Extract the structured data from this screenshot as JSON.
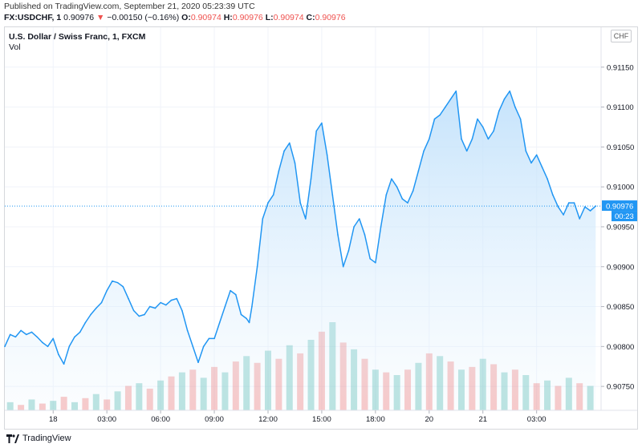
{
  "header": {
    "published": "Published on TradingView.com, September 21, 2020 05:23:39 UTC",
    "symbol": "FX:USDCHF, 1",
    "last": "0.90976",
    "arrow": "▼",
    "change": "−0.00150 (−0.16%)",
    "o_label": "O:",
    "o_value": "0.90974",
    "h_label": "H:",
    "h_value": "0.90976",
    "l_label": "L:",
    "l_value": "0.90974",
    "c_label": "C:",
    "c_value": "0.90976"
  },
  "chart_title": "U.S. Dollar / Swiss Franc, 1, FXCM",
  "vol_label": "Vol",
  "currency_button": "CHF",
  "footer": {
    "brand": "TradingView"
  },
  "colors": {
    "line": "#2196f3",
    "area_top": "#bbdefb",
    "up_volume": "#26a69a",
    "down_volume": "#ef5350",
    "price_tag": "#2196f3",
    "negative": "#ef5350"
  },
  "chart_data": {
    "type": "area",
    "title": "U.S. Dollar / Swiss Franc, 1, FXCM",
    "xlabel": "",
    "ylabel": "CHF",
    "xlim": [
      0,
      44.4
    ],
    "ylim": [
      0.9072,
      0.912
    ],
    "y_ticks": [
      0.9075,
      0.908,
      0.9085,
      0.909,
      0.9095,
      0.91,
      0.9105,
      0.911,
      0.9115
    ],
    "y_tick_labels": [
      "0.90750",
      "0.90800",
      "0.90850",
      "0.90900",
      "0.90950",
      "0.91000",
      "0.91050",
      "0.91100",
      "0.91150"
    ],
    "x_ticks": [
      3.6,
      7.6,
      11.6,
      15.6,
      19.6,
      23.6,
      27.6,
      31.6,
      35.6,
      39.6
    ],
    "x_tick_labels": [
      "18",
      "03:00",
      "06:00",
      "09:00",
      "12:00",
      "15:00",
      "18:00",
      "20",
      "21",
      "03:00"
    ],
    "last_price": 0.90976,
    "last_price_label": "0.90976",
    "countdown_label": "00:23",
    "series": [
      {
        "name": "USDCHF",
        "x": [
          0,
          0.4,
          0.8,
          1.2,
          1.6,
          2.0,
          2.4,
          2.8,
          3.2,
          3.6,
          4.0,
          4.4,
          4.8,
          5.2,
          5.6,
          6.0,
          6.4,
          6.8,
          7.2,
          7.6,
          8.0,
          8.4,
          8.8,
          9.2,
          9.6,
          10.0,
          10.4,
          10.8,
          11.2,
          11.6,
          12.0,
          12.4,
          12.8,
          13.2,
          13.6,
          14.0,
          14.4,
          14.8,
          15.2,
          15.6,
          16.0,
          16.4,
          16.8,
          17.2,
          17.6,
          18.0,
          18.2,
          18.4,
          18.8,
          19.2,
          19.6,
          20.0,
          20.4,
          20.8,
          21.2,
          21.6,
          22.0,
          22.4,
          22.8,
          23.2,
          23.6,
          24.0,
          24.4,
          24.8,
          25.2,
          25.6,
          26.0,
          26.4,
          26.8,
          27.2,
          27.6,
          28.0,
          28.4,
          28.8,
          29.2,
          29.6,
          30.0,
          30.4,
          30.8,
          31.2,
          31.6,
          32.0,
          32.4,
          32.8,
          33.2,
          33.6,
          34.0,
          34.4,
          34.8,
          35.2,
          35.6,
          36.0,
          36.4,
          36.8,
          37.2,
          37.6,
          38.0,
          38.4,
          38.8,
          39.2,
          39.6,
          40.0,
          40.4,
          40.8,
          41.2,
          41.6,
          42.0,
          42.4,
          42.8,
          43.2,
          43.6,
          44.0
        ],
        "values": [
          0.908,
          0.90815,
          0.90812,
          0.9082,
          0.90815,
          0.90818,
          0.90812,
          0.90805,
          0.908,
          0.9081,
          0.9079,
          0.90778,
          0.908,
          0.90812,
          0.90818,
          0.9083,
          0.9084,
          0.90848,
          0.90855,
          0.9087,
          0.90882,
          0.9088,
          0.90875,
          0.9086,
          0.90845,
          0.90838,
          0.9084,
          0.9085,
          0.90848,
          0.90855,
          0.90852,
          0.90858,
          0.9086,
          0.90845,
          0.9082,
          0.908,
          0.9078,
          0.908,
          0.9081,
          0.9081,
          0.9083,
          0.9085,
          0.9087,
          0.90865,
          0.9084,
          0.90835,
          0.9083,
          0.9085,
          0.909,
          0.9096,
          0.9098,
          0.9099,
          0.9102,
          0.91045,
          0.91055,
          0.9103,
          0.9098,
          0.9096,
          0.9101,
          0.9107,
          0.9108,
          0.9104,
          0.9099,
          0.9094,
          0.909,
          0.9092,
          0.9095,
          0.9096,
          0.9094,
          0.9091,
          0.90905,
          0.9095,
          0.9099,
          0.9101,
          0.91,
          0.90985,
          0.9098,
          0.90995,
          0.9102,
          0.91045,
          0.9106,
          0.91085,
          0.9109,
          0.911,
          0.9111,
          0.9112,
          0.9106,
          0.91045,
          0.9106,
          0.91085,
          0.91075,
          0.9106,
          0.9107,
          0.91095,
          0.9111,
          0.9112,
          0.911,
          0.91085,
          0.91045,
          0.9103,
          0.9104,
          0.91025,
          0.9101,
          0.9099,
          0.90975,
          0.90965,
          0.9098,
          0.9098,
          0.9096,
          0.90975,
          0.9097,
          0.90976
        ]
      }
    ],
    "volume": {
      "label": "Vol",
      "x": [
        0.4,
        1.2,
        2.0,
        2.8,
        3.6,
        4.4,
        5.2,
        6.0,
        6.8,
        7.6,
        8.4,
        9.2,
        10.0,
        10.8,
        11.6,
        12.4,
        13.2,
        14.0,
        14.8,
        15.6,
        16.4,
        17.2,
        18.0,
        18.8,
        19.6,
        20.4,
        21.2,
        22.0,
        22.8,
        23.6,
        24.4,
        25.2,
        26.0,
        26.8,
        27.6,
        28.4,
        29.2,
        30.0,
        30.8,
        31.6,
        32.4,
        33.2,
        34.0,
        34.8,
        35.6,
        36.4,
        37.2,
        38.0,
        38.8,
        39.6,
        40.4,
        41.2,
        42.0,
        42.8,
        43.6
      ],
      "values": [
        6,
        4,
        8,
        5,
        7,
        10,
        6,
        9,
        12,
        8,
        14,
        18,
        20,
        16,
        22,
        25,
        28,
        30,
        24,
        32,
        28,
        36,
        40,
        35,
        44,
        38,
        48,
        42,
        52,
        58,
        65,
        50,
        45,
        38,
        30,
        28,
        26,
        30,
        35,
        42,
        40,
        36,
        30,
        32,
        38,
        34,
        28,
        30,
        26,
        20,
        22,
        18,
        24,
        20,
        18
      ],
      "direction": [
        "up",
        "down",
        "up",
        "down",
        "up",
        "down",
        "up",
        "down",
        "up",
        "down",
        "up",
        "down",
        "up",
        "down",
        "up",
        "down",
        "up",
        "down",
        "up",
        "down",
        "up",
        "down",
        "up",
        "down",
        "up",
        "down",
        "up",
        "down",
        "up",
        "down",
        "up",
        "down",
        "up",
        "down",
        "up",
        "down",
        "up",
        "down",
        "up",
        "down",
        "up",
        "down",
        "up",
        "down",
        "up",
        "down",
        "up",
        "down",
        "up",
        "down",
        "up",
        "down",
        "up",
        "down",
        "up"
      ]
    }
  }
}
